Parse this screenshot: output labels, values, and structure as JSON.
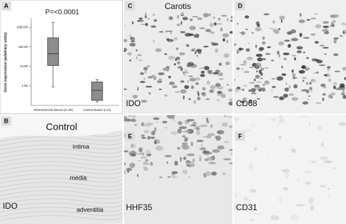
{
  "panels": {
    "a": "A",
    "b": "B",
    "c": "C",
    "d": "D",
    "e": "E",
    "f": "F"
  },
  "chart_data": {
    "type": "box",
    "annotation": "P=<0.0001",
    "y_label": "Gene expression (arbitrary units)",
    "categories": [
      "Atherosclerotic tissues (n=20)",
      "Control tissues (n=6)"
    ],
    "boxes": [
      {
        "min": 0.9,
        "q1": 11,
        "median": 44,
        "q3": 290,
        "max": 1780
      },
      {
        "min": 0.15,
        "q1": 0.18,
        "median": 0.6,
        "q3": 1.6,
        "max": 2.1
      }
    ],
    "color": "#8c8c8c",
    "log_y": true,
    "ylim": [
      0.1,
      3000
    ],
    "yticks": [
      {
        "value": 1000,
        "label": "1000,00"
      },
      {
        "value": 100,
        "label": "100,00"
      },
      {
        "value": 10,
        "label": "10,00"
      },
      {
        "value": 1,
        "label": "1,00"
      }
    ]
  },
  "micrographs": {
    "c_title": "Carotis",
    "c_stain": "IDO",
    "d_stain": "CD68",
    "b_title": "Control",
    "b_layers": [
      "intima",
      "media",
      "adventitia"
    ],
    "b_stain": "IDO",
    "e_stain": "HHF35",
    "f_stain": "CD31"
  }
}
